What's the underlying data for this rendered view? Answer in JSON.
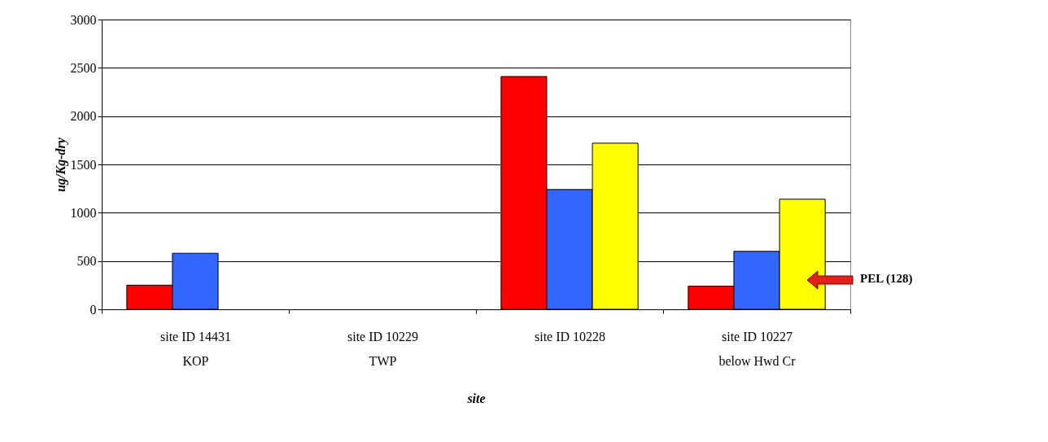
{
  "chart_data": {
    "type": "bar",
    "xlabel": "site",
    "ylabel": "ug/Kg-dry",
    "categories": [
      "site ID 14431\nKOP",
      "site ID 10229\nTWP",
      "site ID 10228",
      "site ID 10227\nbelow Hwd Cr"
    ],
    "series": [
      {
        "color": "#ff0000",
        "values": [
          250,
          null,
          2410,
          240
        ]
      },
      {
        "color": "#3366ff",
        "values": [
          580,
          null,
          1240,
          600
        ]
      },
      {
        "color": "#ffff00",
        "values": [
          null,
          null,
          1720,
          1140
        ]
      }
    ],
    "ylim": [
      0,
      3000
    ],
    "yticks": [
      0,
      500,
      1000,
      1500,
      2000,
      2500,
      3000
    ],
    "grid": "y",
    "legend": false,
    "annotations": [
      "PEL (128)"
    ]
  }
}
